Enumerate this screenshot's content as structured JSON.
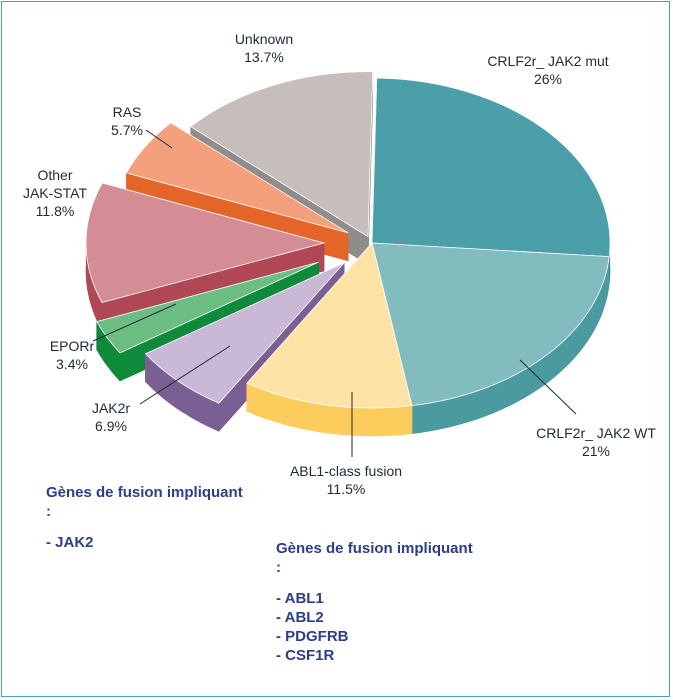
{
  "chart_data": {
    "type": "pie",
    "slices": [
      {
        "label": "CRLF2r_ JAK2 mut",
        "value": 26,
        "value_label": "26%",
        "color": "#4a9fa8",
        "side": "#1f7a83"
      },
      {
        "label": "CRLF2r_ JAK2 WT",
        "value": 21,
        "value_label": "21%",
        "color": "#82bcbf",
        "side": "#4b9aa0"
      },
      {
        "label": "ABL1-class fusion",
        "value": 11.5,
        "value_label": "11.5%",
        "color": "#fde3a6",
        "side": "#fccd5c"
      },
      {
        "label": "JAK2r",
        "value": 6.9,
        "value_label": "6.9%",
        "color": "#c9b9d6",
        "side": "#7a5f95"
      },
      {
        "label": "EPORr",
        "value": 3.4,
        "value_label": "3.4%",
        "color": "#6bbd82",
        "side": "#0f8a3b"
      },
      {
        "label": "Other\nJAK-STAT",
        "value": 11.8,
        "value_label": "11.8%",
        "color": "#d48d95",
        "side": "#b04754"
      },
      {
        "label": "RAS",
        "value": 5.7,
        "value_label": "5.7%",
        "color": "#f4a07d",
        "side": "#e46528"
      },
      {
        "label": "Unknown",
        "value": 13.7,
        "value_label": "13.7%",
        "color": "#c5bebb",
        "side": "#8f8c8c"
      }
    ]
  },
  "notes": {
    "left": {
      "heading": "Gènes de fusion impliquant :",
      "items": [
        "- JAK2"
      ]
    },
    "right": {
      "heading": "Gènes de fusion impliquant :",
      "items": [
        "- ABL1",
        "- ABL2",
        "- PDGFRB",
        "- CSF1R"
      ]
    }
  }
}
